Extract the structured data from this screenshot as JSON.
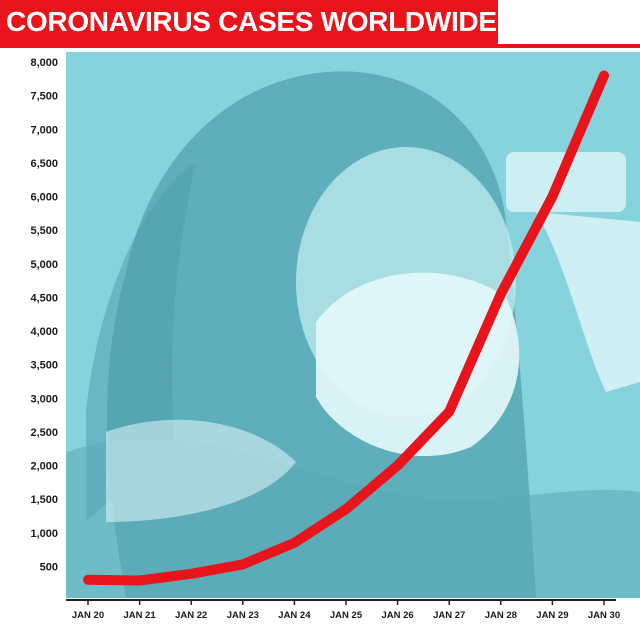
{
  "title": "CORONAVIRUS CASES WORLDWIDE",
  "colors": {
    "accent": "#e8141b",
    "photo_tint": "#7fd0dc",
    "text": "#1a1a1a"
  },
  "chart_data": {
    "type": "line",
    "title": "CORONAVIRUS CASES WORLDWIDE",
    "xlabel": "",
    "ylabel": "",
    "x": [
      "JAN 20",
      "JAN 21",
      "JAN 22",
      "JAN 23",
      "JAN 24",
      "JAN 25",
      "JAN 26",
      "JAN 27",
      "JAN 28",
      "JAN 29",
      "JAN 30"
    ],
    "y_ticks": [
      "500",
      "1,000",
      "1,500",
      "2,000",
      "2,500",
      "3,000",
      "3,500",
      "4,000",
      "4,500",
      "5,000",
      "5,500",
      "6,000",
      "6,500",
      "7,000",
      "7,500",
      "8,000"
    ],
    "ylim": [
      0,
      8000
    ],
    "series": [
      {
        "values": [
          300,
          290,
          390,
          530,
          850,
          1350,
          2000,
          2800,
          4550,
          6000,
          7800
        ]
      }
    ],
    "grid": false,
    "legend": "none"
  }
}
